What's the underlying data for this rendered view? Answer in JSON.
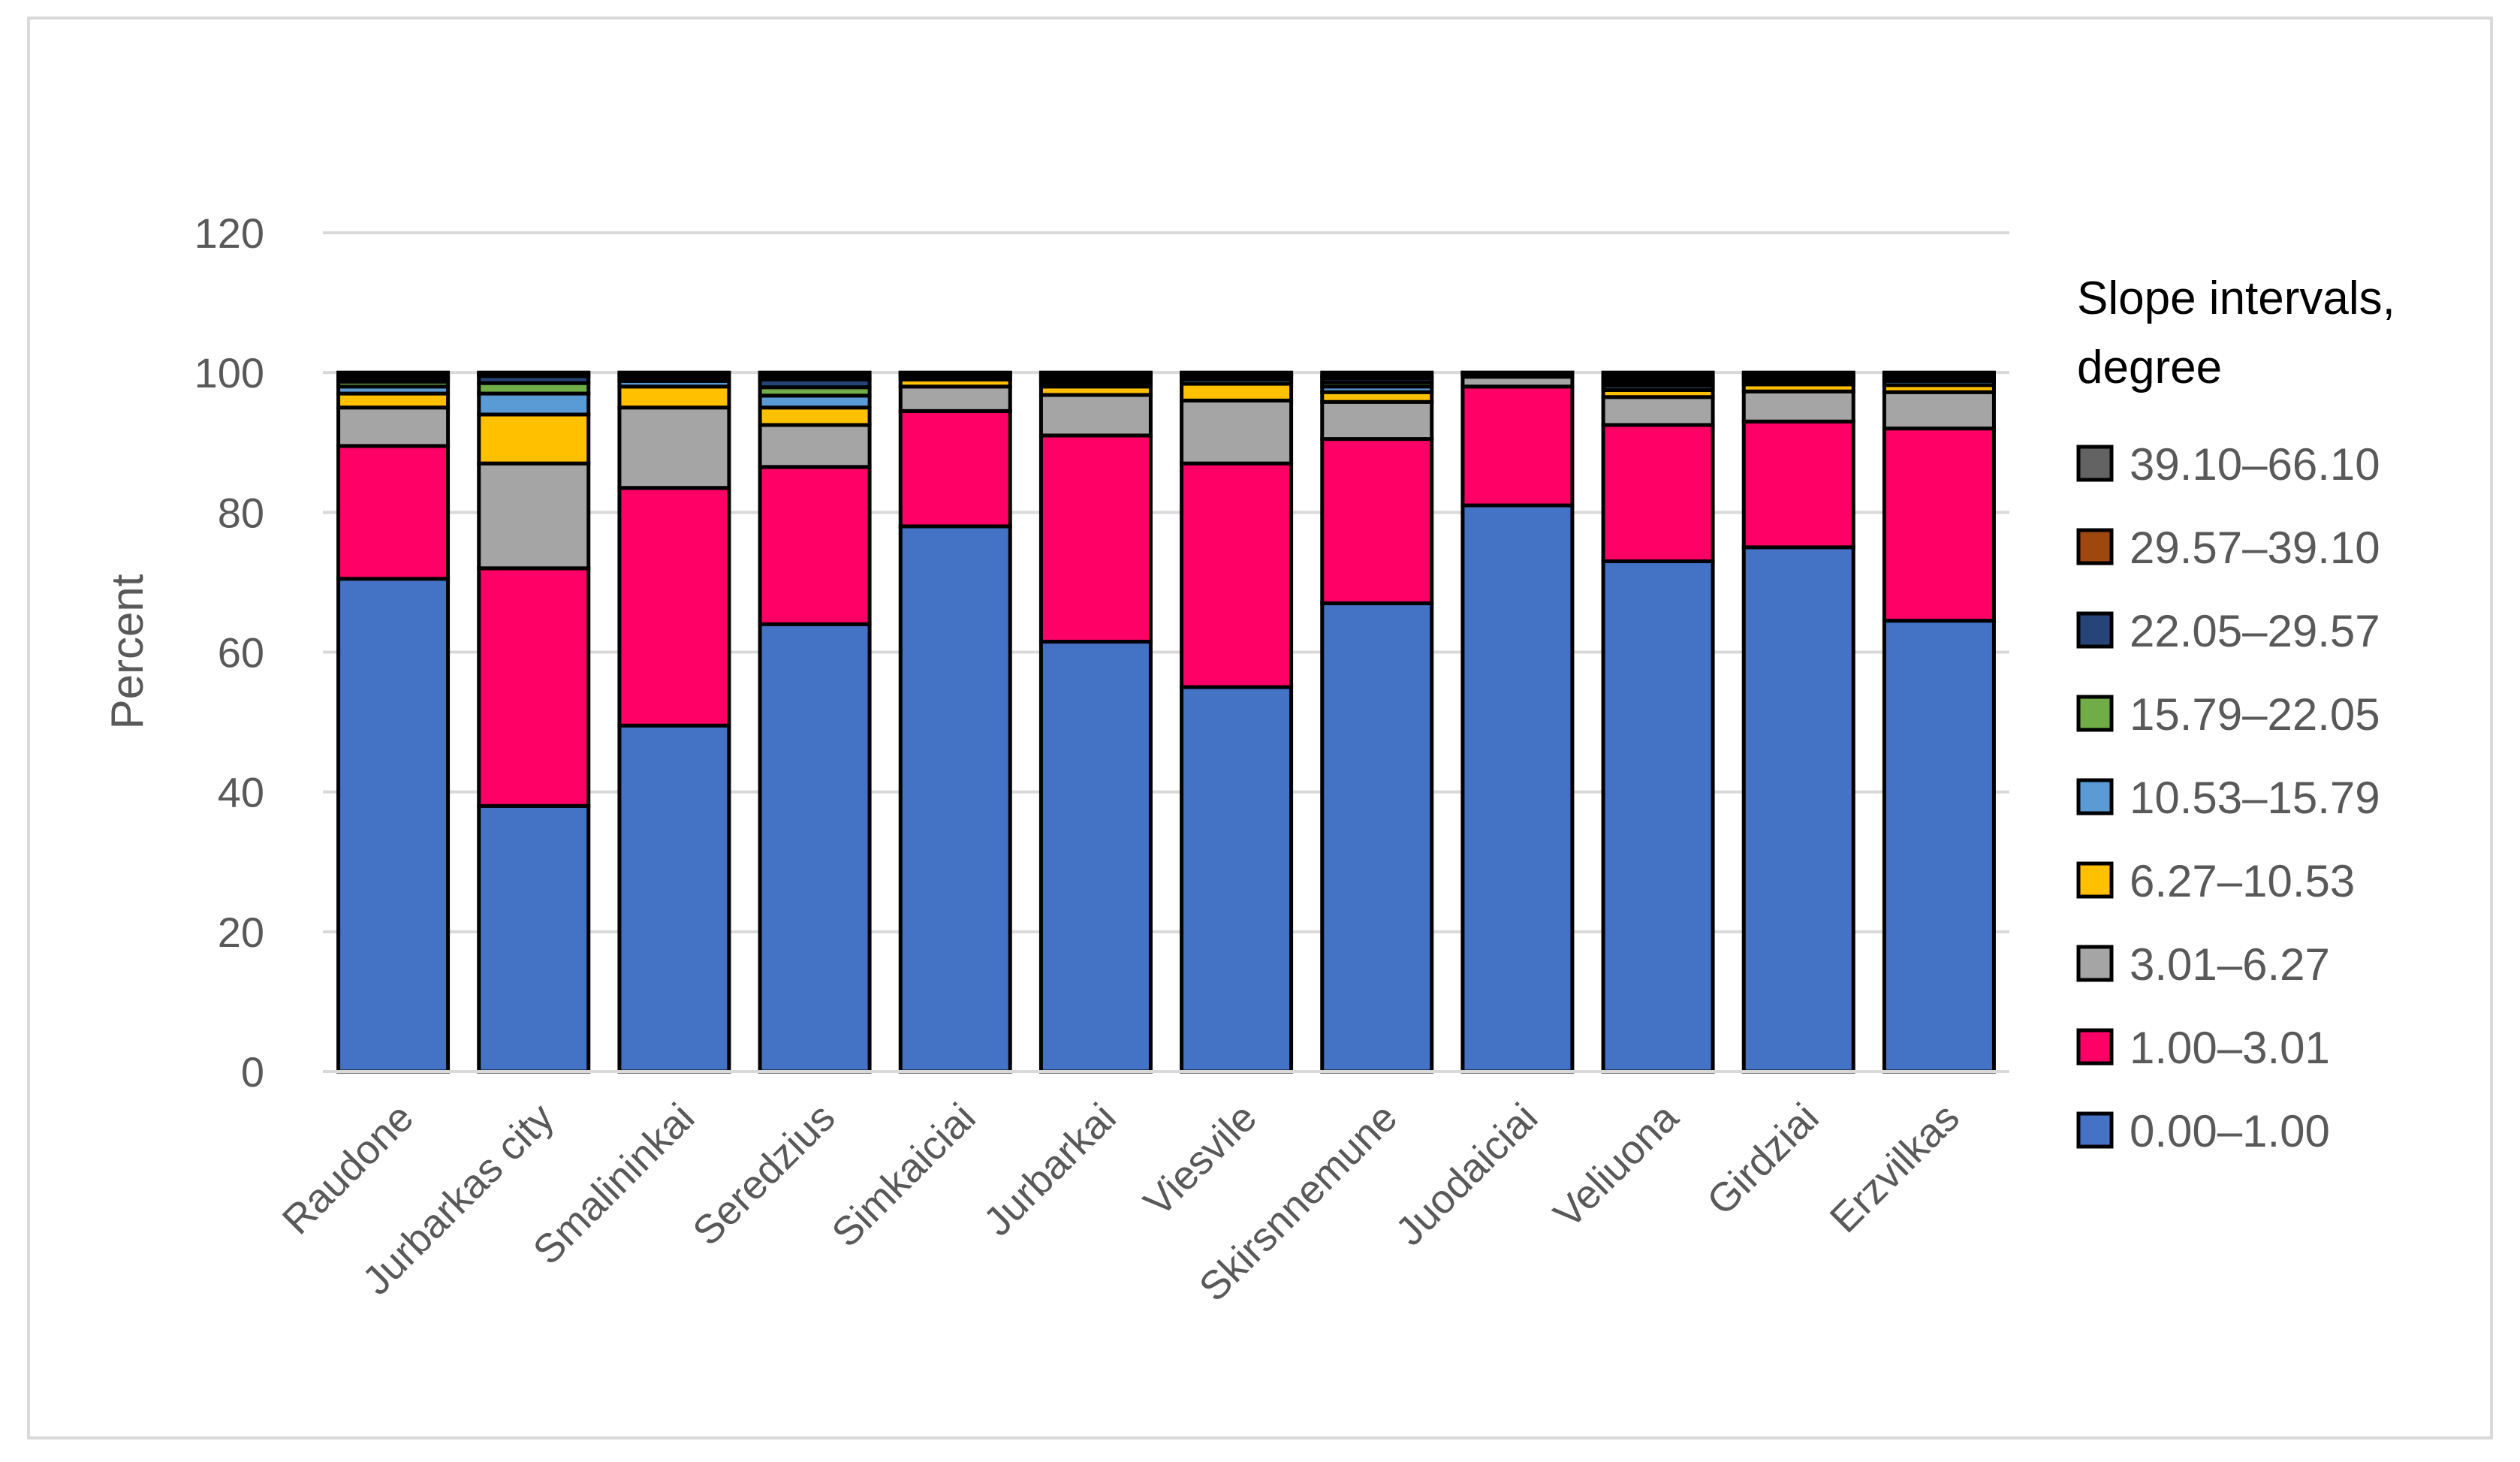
{
  "chart_data": {
    "type": "bar",
    "stacked": true,
    "title": "",
    "xlabel": "",
    "ylabel": "Percent",
    "ylim": [
      0,
      120
    ],
    "yticks": [
      0,
      20,
      40,
      60,
      80,
      100,
      120
    ],
    "grid": true,
    "legend_title": "Slope intervals, degree",
    "legend_title_lines": [
      "Slope intervals,",
      "degree"
    ],
    "legend_position": "right",
    "categories": [
      "Raudone",
      "Jurbarkas city",
      "Smalininkai",
      "Seredzius",
      "Simkaiciai",
      "Jurbarkai",
      "Viesvile",
      "Skirsnnemune",
      "Juodaiciai",
      "Veliuona",
      "Girdziai",
      "Erzvilkas"
    ],
    "series": [
      {
        "name": "0.00–1.00",
        "color": "#4472C4",
        "values": [
          70.5,
          38,
          49.5,
          64,
          78,
          61.5,
          55,
          67,
          81,
          73,
          75,
          64.5
        ]
      },
      {
        "name": "1.00–3.01",
        "color": "#FF0066",
        "values": [
          19,
          34,
          34,
          22.5,
          16.5,
          29.5,
          32,
          23.5,
          17,
          19.5,
          18,
          27.5
        ]
      },
      {
        "name": "3.01–6.27",
        "color": "#A5A5A5",
        "values": [
          5.5,
          15,
          11.5,
          6,
          3.5,
          5.8,
          9,
          5.3,
          1.4,
          4,
          4.3,
          5.2
        ]
      },
      {
        "name": "6.27–10.53",
        "color": "#FFC000",
        "values": [
          2,
          7,
          3,
          2.5,
          1,
          1.2,
          2.4,
          1.4,
          0.3,
          1,
          1,
          1
        ]
      },
      {
        "name": "10.53–15.79",
        "color": "#5B9BD5",
        "values": [
          1,
          3,
          0.8,
          1.7,
          0.4,
          0.5,
          0.6,
          0.8,
          0.1,
          0.6,
          0.5,
          0.6
        ]
      },
      {
        "name": "15.79–22.05",
        "color": "#70AD47",
        "values": [
          0.7,
          1.5,
          0.4,
          1.2,
          0.3,
          0.5,
          0.4,
          0.6,
          0.1,
          0.5,
          0.4,
          0.4
        ]
      },
      {
        "name": "22.05–29.57",
        "color": "#264478",
        "values": [
          0.5,
          1,
          0.4,
          1.1,
          0.2,
          0.5,
          0.3,
          0.6,
          0.05,
          0.5,
          0.3,
          0.3
        ]
      },
      {
        "name": "29.57–39.10",
        "color": "#9E480E",
        "values": [
          0.3,
          0.3,
          0.2,
          0.5,
          0.05,
          0.2,
          0.1,
          0.3,
          0.03,
          0.4,
          0.2,
          0.2
        ]
      },
      {
        "name": "39.10–66.10",
        "color": "#636363",
        "values": [
          0.5,
          0.2,
          0.2,
          0.5,
          0.05,
          0.3,
          0.2,
          0.5,
          0.02,
          0.5,
          0.3,
          0.3
        ]
      }
    ]
  }
}
